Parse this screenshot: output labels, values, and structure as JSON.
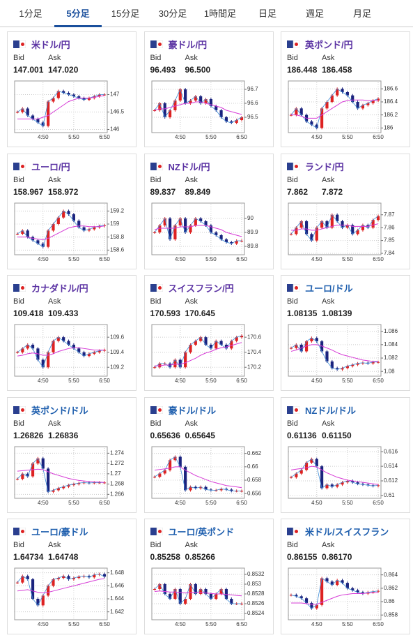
{
  "tabs": {
    "items": [
      "1分足",
      "5分足",
      "15分足",
      "30分足",
      "1時間足",
      "日足",
      "週足",
      "月足"
    ],
    "active": 1
  },
  "labels": {
    "bid": "Bid",
    "ask": "Ask"
  },
  "xticks": [
    {
      "value": 5,
      "label": "4:50"
    },
    {
      "value": 11,
      "label": "5:50"
    },
    {
      "value": 17,
      "label": "6:50"
    }
  ],
  "xlim": [
    0,
    17
  ],
  "cards": [
    {
      "name": "米ドル/円",
      "name_color": "#5b33a3",
      "bid": "147.001",
      "ask": "147.020",
      "ylim": [
        145.95,
        147.35
      ],
      "yticks": [
        146,
        146.5,
        147
      ],
      "closes": [
        146.5,
        146.6,
        146.4,
        146.3,
        146.2,
        146.1,
        146.8,
        146.9,
        147.1,
        147.05,
        147.0,
        146.95,
        146.9,
        146.85,
        146.9,
        146.95,
        147.0,
        147.0
      ],
      "ma": [
        146.3,
        146.3,
        146.3,
        146.3,
        146.3,
        146.35,
        146.4,
        146.5,
        146.6,
        146.7,
        146.8,
        146.85,
        146.9,
        146.9,
        146.9,
        146.92,
        146.95,
        146.97
      ]
    },
    {
      "name": "豪ドル/円",
      "name_color": "#5b33a3",
      "bid": "96.493",
      "ask": "96.500",
      "ylim": [
        96.4,
        96.75
      ],
      "yticks": [
        96.5,
        96.6,
        96.7
      ],
      "closes": [
        96.55,
        96.6,
        96.5,
        96.55,
        96.62,
        96.7,
        96.6,
        96.62,
        96.65,
        96.6,
        96.63,
        96.58,
        96.55,
        96.5,
        96.47,
        96.46,
        96.48,
        96.5
      ],
      "ma": [
        96.55,
        96.56,
        96.56,
        96.57,
        96.58,
        96.59,
        96.6,
        96.6,
        96.61,
        96.61,
        96.6,
        96.59,
        96.58,
        96.57,
        96.55,
        96.54,
        96.53,
        96.52
      ]
    },
    {
      "name": "英ポンド/円",
      "name_color": "#5b33a3",
      "bid": "186.448",
      "ask": "186.458",
      "ylim": [
        185.95,
        186.7
      ],
      "yticks": [
        186,
        186.2,
        186.4,
        186.6
      ],
      "closes": [
        186.2,
        186.3,
        186.2,
        186.1,
        186.05,
        186.0,
        186.3,
        186.4,
        186.5,
        186.6,
        186.55,
        186.5,
        186.4,
        186.3,
        186.35,
        186.38,
        186.42,
        186.45
      ],
      "ma": [
        186.2,
        186.2,
        186.18,
        186.15,
        186.15,
        186.15,
        186.2,
        186.25,
        186.3,
        186.35,
        186.4,
        186.42,
        186.43,
        186.43,
        186.43,
        186.42,
        186.42,
        186.43
      ]
    },
    {
      "name": "ユーロ/円",
      "name_color": "#5b33a3",
      "bid": "158.967",
      "ask": "158.972",
      "ylim": [
        158.55,
        159.3
      ],
      "yticks": [
        158.6,
        158.8,
        159,
        159.2
      ],
      "closes": [
        158.85,
        158.9,
        158.8,
        158.75,
        158.7,
        158.65,
        158.9,
        159.0,
        159.1,
        159.2,
        159.15,
        159.05,
        158.95,
        158.9,
        158.92,
        158.95,
        158.97,
        158.98
      ],
      "ma": [
        158.8,
        158.8,
        158.8,
        158.78,
        158.77,
        158.76,
        158.78,
        158.82,
        158.86,
        158.9,
        158.94,
        158.96,
        158.97,
        158.97,
        158.96,
        158.96,
        158.96,
        158.97
      ]
    },
    {
      "name": "NZドル/円",
      "name_color": "#5b33a3",
      "bid": "89.837",
      "ask": "89.849",
      "ylim": [
        89.75,
        90.1
      ],
      "yticks": [
        89.8,
        89.9,
        90
      ],
      "closes": [
        89.9,
        89.95,
        90.0,
        89.85,
        89.95,
        90.0,
        89.9,
        89.95,
        90.0,
        89.98,
        89.95,
        89.9,
        89.88,
        89.85,
        89.83,
        89.82,
        89.84,
        89.84
      ],
      "ma": [
        89.92,
        89.93,
        89.93,
        89.93,
        89.93,
        89.94,
        89.94,
        89.94,
        89.95,
        89.95,
        89.95,
        89.94,
        89.93,
        89.92,
        89.9,
        89.89,
        89.88,
        89.87
      ]
    },
    {
      "name": "ランド/円",
      "name_color": "#5b33a3",
      "bid": "7.862",
      "ask": "7.872",
      "ylim": [
        7.84,
        7.878
      ],
      "yticks": [
        7.84,
        7.85,
        7.86,
        7.87
      ],
      "closes": [
        7.855,
        7.86,
        7.865,
        7.855,
        7.85,
        7.86,
        7.865,
        7.86,
        7.87,
        7.865,
        7.86,
        7.862,
        7.855,
        7.858,
        7.862,
        7.86,
        7.866,
        7.869
      ],
      "ma": [
        7.858,
        7.858,
        7.859,
        7.859,
        7.858,
        7.858,
        7.859,
        7.86,
        7.861,
        7.862,
        7.862,
        7.862,
        7.861,
        7.861,
        7.861,
        7.861,
        7.862,
        7.863
      ]
    },
    {
      "name": "カナダドル/円",
      "name_color": "#5b33a3",
      "bid": "109.418",
      "ask": "109.433",
      "ylim": [
        109.1,
        109.75
      ],
      "yticks": [
        109.2,
        109.4,
        109.6
      ],
      "closes": [
        109.4,
        109.45,
        109.5,
        109.45,
        109.3,
        109.2,
        109.4,
        109.55,
        109.6,
        109.55,
        109.5,
        109.45,
        109.4,
        109.35,
        109.38,
        109.4,
        109.42,
        109.43
      ],
      "ma": [
        109.35,
        109.36,
        109.38,
        109.39,
        109.38,
        109.36,
        109.36,
        109.38,
        109.41,
        109.43,
        109.45,
        109.46,
        109.46,
        109.45,
        109.44,
        109.43,
        109.43,
        109.43
      ]
    },
    {
      "name": "スイスフラン/円",
      "name_color": "#5b33a3",
      "bid": "170.593",
      "ask": "170.645",
      "ylim": [
        170.1,
        170.75
      ],
      "yticks": [
        170.2,
        170.4,
        170.6
      ],
      "closes": [
        170.2,
        170.25,
        170.25,
        170.2,
        170.3,
        170.2,
        170.4,
        170.5,
        170.55,
        170.6,
        170.5,
        170.45,
        170.55,
        170.5,
        170.45,
        170.55,
        170.6,
        170.62
      ],
      "ma": [
        170.22,
        170.22,
        170.23,
        170.23,
        170.24,
        170.24,
        170.26,
        170.29,
        170.32,
        170.36,
        170.39,
        170.41,
        170.44,
        170.46,
        170.47,
        170.49,
        170.51,
        170.53
      ]
    },
    {
      "name": "ユーロ/ドル",
      "name_color": "#1f5fae",
      "bid": "1.08135",
      "ask": "1.08139",
      "ylim": [
        1.0795,
        1.0868
      ],
      "yticks": [
        1.08,
        1.082,
        1.084,
        1.086
      ],
      "closes": [
        1.0835,
        1.084,
        1.083,
        1.0845,
        1.085,
        1.0845,
        1.083,
        1.0815,
        1.0805,
        1.0803,
        1.0805,
        1.0808,
        1.081,
        1.0812,
        1.0813,
        1.0812,
        1.0814,
        1.0814
      ],
      "ma": [
        1.083,
        1.0832,
        1.0835,
        1.0838,
        1.084,
        1.084,
        1.0838,
        1.0835,
        1.0832,
        1.0828,
        1.0825,
        1.0823,
        1.0821,
        1.0819,
        1.0817,
        1.0816,
        1.0815,
        1.0815
      ]
    },
    {
      "name": "英ポンド/ドル",
      "name_color": "#1f5fae",
      "bid": "1.26826",
      "ask": "1.26836",
      "ylim": [
        1.2655,
        1.275
      ],
      "yticks": [
        1.266,
        1.268,
        1.27,
        1.272,
        1.274
      ],
      "closes": [
        1.269,
        1.27,
        1.2695,
        1.272,
        1.273,
        1.271,
        1.2665,
        1.2668,
        1.2672,
        1.2675,
        1.2678,
        1.268,
        1.2682,
        1.2683,
        1.2682,
        1.2683,
        1.2683,
        1.2683
      ],
      "ma": [
        1.2705,
        1.2706,
        1.2707,
        1.2708,
        1.2709,
        1.2708,
        1.2704,
        1.27,
        1.2697,
        1.2694,
        1.2691,
        1.2689,
        1.2687,
        1.2686,
        1.2685,
        1.2684,
        1.2684,
        1.2683
      ]
    },
    {
      "name": "豪ドル/ドル",
      "name_color": "#1f5fae",
      "bid": "0.65636",
      "ask": "0.65645",
      "ylim": [
        0.6555,
        0.6628
      ],
      "yticks": [
        0.656,
        0.658,
        0.66,
        0.662
      ],
      "closes": [
        0.6585,
        0.659,
        0.6595,
        0.661,
        0.6615,
        0.66,
        0.6565,
        0.657,
        0.6568,
        0.657,
        0.6566,
        0.6565,
        0.6565,
        0.6567,
        0.6566,
        0.6564,
        0.6564,
        0.6564
      ],
      "ma": [
        0.6595,
        0.6596,
        0.6597,
        0.6598,
        0.66,
        0.66,
        0.6595,
        0.6591,
        0.6587,
        0.6584,
        0.6581,
        0.6578,
        0.6576,
        0.6574,
        0.6572,
        0.6571,
        0.657,
        0.6569
      ]
    },
    {
      "name": "NZドル/ドル",
      "name_color": "#1f5fae",
      "bid": "0.61136",
      "ask": "0.61150",
      "ylim": [
        0.6098,
        0.6165
      ],
      "yticks": [
        0.61,
        0.612,
        0.614,
        0.616
      ],
      "closes": [
        0.6125,
        0.613,
        0.6135,
        0.6145,
        0.615,
        0.614,
        0.611,
        0.6115,
        0.6112,
        0.6115,
        0.6118,
        0.612,
        0.6118,
        0.6116,
        0.6115,
        0.6114,
        0.6113,
        0.6114
      ],
      "ma": [
        0.6135,
        0.6136,
        0.6137,
        0.6138,
        0.614,
        0.6139,
        0.6135,
        0.6131,
        0.6128,
        0.6125,
        0.6123,
        0.6121,
        0.612,
        0.6119,
        0.6118,
        0.6117,
        0.6116,
        0.6115
      ]
    },
    {
      "name": "ユーロ/豪ドル",
      "name_color": "#1f5fae",
      "bid": "1.64734",
      "ask": "1.64748",
      "ylim": [
        1.641,
        1.6485
      ],
      "yticks": [
        1.642,
        1.644,
        1.646,
        1.648
      ],
      "closes": [
        1.6465,
        1.6475,
        1.647,
        1.644,
        1.643,
        1.6445,
        1.646,
        1.647,
        1.6472,
        1.6475,
        1.647,
        1.6472,
        1.6474,
        1.6475,
        1.6473,
        1.6477,
        1.6478,
        1.6474
      ],
      "ma": [
        1.6452,
        1.6453,
        1.6454,
        1.6452,
        1.645,
        1.6449,
        1.645,
        1.6452,
        1.6454,
        1.6456,
        1.6458,
        1.646,
        1.6462,
        1.6464,
        1.6466,
        1.6468,
        1.647,
        1.6471
      ]
    },
    {
      "name": "ユーロ/英ポンド",
      "name_color": "#1f5fae",
      "bid": "0.85258",
      "ask": "0.85266",
      "ylim": [
        0.8523,
        0.8533
      ],
      "yticks": [
        {
          "value": 0.8524,
          "label": "0.8524"
        },
        {
          "value": 0.8526,
          "label": "0.8526"
        },
        {
          "value": 0.8528,
          "label": "0.8528"
        },
        {
          "value": 0.853,
          "label": "0.853"
        },
        {
          "value": 0.8532,
          "label": "0.8532"
        }
      ],
      "closes": [
        0.8529,
        0.853,
        0.8528,
        0.8527,
        0.8529,
        0.8526,
        0.8527,
        0.853,
        0.8528,
        0.8529,
        0.8528,
        0.8527,
        0.8528,
        0.8529,
        0.8527,
        0.8526,
        0.8526,
        0.8526
      ],
      "ma": [
        0.85285,
        0.85286,
        0.85285,
        0.85284,
        0.85284,
        0.85283,
        0.85282,
        0.85283,
        0.85283,
        0.85283,
        0.85282,
        0.85281,
        0.8528,
        0.8528,
        0.85279,
        0.85278,
        0.85277,
        0.85276
      ]
    },
    {
      "name": "米ドル/スイスフラン",
      "name_color": "#1f5fae",
      "bid": "0.86155",
      "ask": "0.86170",
      "ylim": [
        0.8575,
        0.8648
      ],
      "yticks": [
        0.858,
        0.86,
        0.862,
        0.864
      ],
      "closes": [
        0.861,
        0.8608,
        0.8605,
        0.8598,
        0.859,
        0.8595,
        0.8635,
        0.863,
        0.8625,
        0.8632,
        0.8628,
        0.862,
        0.8617,
        0.8614,
        0.8612,
        0.8614,
        0.8615,
        0.8616
      ],
      "ma": [
        0.8598,
        0.8598,
        0.8598,
        0.8597,
        0.8596,
        0.8596,
        0.8599,
        0.8602,
        0.8605,
        0.8608,
        0.861,
        0.8611,
        0.8612,
        0.8612,
        0.8612,
        0.8613,
        0.8613,
        0.8614
      ]
    }
  ]
}
